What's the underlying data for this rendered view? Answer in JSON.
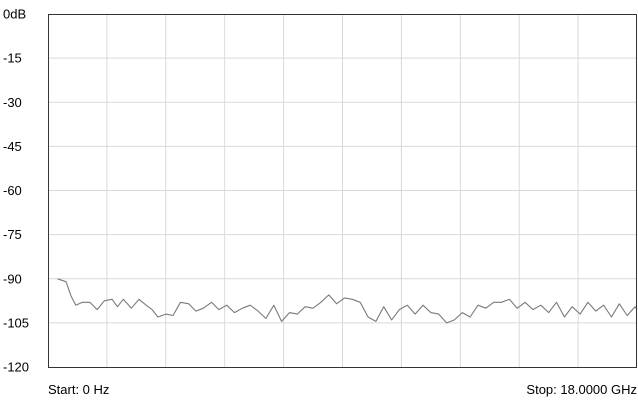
{
  "chart_data": {
    "type": "line",
    "title": "",
    "xlabel": "",
    "ylabel": "",
    "unit": "dB",
    "x_start_label": "Start: 0 Hz",
    "x_stop_label": "Stop: 18.0000 GHz",
    "x_range_ghz": [
      0,
      18
    ],
    "ylim": [
      -120,
      0
    ],
    "y_ticks": [
      {
        "value": 0,
        "label": "0dB"
      },
      {
        "value": -15,
        "label": "-15"
      },
      {
        "value": -30,
        "label": "-30"
      },
      {
        "value": -45,
        "label": "-45"
      },
      {
        "value": -60,
        "label": "-60"
      },
      {
        "value": -75,
        "label": "-75"
      },
      {
        "value": -90,
        "label": "-90"
      },
      {
        "value": -105,
        "label": "-105"
      },
      {
        "value": -120,
        "label": "-120"
      }
    ],
    "vertical_gridlines": 9,
    "grid": true,
    "legend": "none",
    "colors": {
      "trace": "#7a7a7a",
      "grid": "#d9d9d9",
      "frame": "#333333"
    },
    "series": [
      {
        "x": [
          0.29,
          0.55,
          0.71,
          0.85,
          1.05,
          1.28,
          1.5,
          1.72,
          1.96,
          2.12,
          2.3,
          2.55,
          2.78,
          3.0,
          3.18,
          3.36,
          3.6,
          3.82,
          4.05,
          4.3,
          4.52,
          4.75,
          5.0,
          5.22,
          5.46,
          5.7,
          5.94,
          6.18,
          6.42,
          6.66,
          6.9,
          7.14,
          7.38,
          7.62,
          7.86,
          8.1,
          8.34,
          8.58,
          8.82,
          9.06,
          9.3,
          9.54,
          9.78,
          10.02,
          10.26,
          10.5,
          10.74,
          10.98,
          11.22,
          11.46,
          11.7,
          11.94,
          12.18,
          12.42,
          12.66,
          12.9,
          13.14,
          13.38,
          13.62,
          13.86,
          14.1,
          14.34,
          14.58,
          14.82,
          15.06,
          15.3,
          15.54,
          15.78,
          16.02,
          16.26,
          16.5,
          16.74,
          16.98,
          17.22,
          17.46,
          17.7,
          17.94,
          18.0
        ],
        "values": [
          -90.0,
          -91.0,
          -96.0,
          -99.0,
          -98.0,
          -98.0,
          -100.5,
          -97.5,
          -97.0,
          -99.5,
          -97.0,
          -100.0,
          -97.0,
          -99.0,
          -100.5,
          -103.0,
          -102.0,
          -102.5,
          -98.0,
          -98.5,
          -101.0,
          -100.0,
          -98.0,
          -100.5,
          -99.0,
          -101.5,
          -100.0,
          -99.0,
          -101.0,
          -103.5,
          -99.0,
          -104.5,
          -101.5,
          -102.0,
          -99.5,
          -100.0,
          -98.0,
          -95.5,
          -98.5,
          -96.5,
          -97.0,
          -98.0,
          -103.0,
          -104.5,
          -99.5,
          -104.0,
          -100.5,
          -99.0,
          -102.0,
          -99.0,
          -101.5,
          -102.0,
          -105.0,
          -104.0,
          -101.5,
          -103.0,
          -99.0,
          -100.0,
          -98.0,
          -98.0,
          -97.0,
          -100.0,
          -98.0,
          -100.5,
          -99.0,
          -101.5,
          -98.0,
          -103.0,
          -99.5,
          -102.0,
          -98.0,
          -101.0,
          -99.0,
          -103.0,
          -98.5,
          -102.5,
          -99.5,
          -100.5
        ]
      }
    ]
  }
}
